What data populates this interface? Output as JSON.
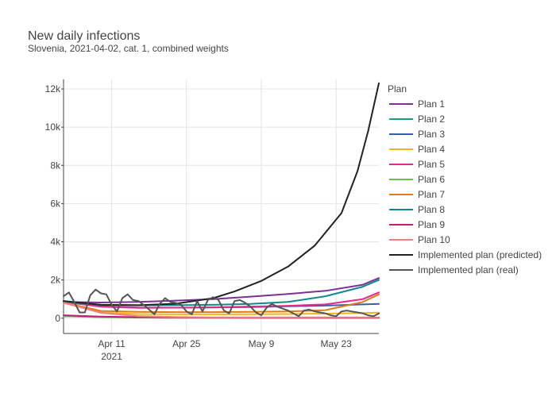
{
  "chart_data": {
    "type": "line",
    "title": "New daily infections",
    "subtitle": "Slovenia, 2021-04-02, cat. 1, combined weights",
    "xlabel": "",
    "ylabel": "",
    "x_start": "2021-04-02",
    "x_end": "2021-05-31",
    "x_ticks": [
      {
        "date": "2021-04-11",
        "label": "Apr 11",
        "sublabel": "2021"
      },
      {
        "date": "2021-04-25",
        "label": "Apr 25",
        "sublabel": ""
      },
      {
        "date": "2021-05-09",
        "label": "May 9",
        "sublabel": ""
      },
      {
        "date": "2021-05-23",
        "label": "May 23",
        "sublabel": ""
      }
    ],
    "ylim": [
      -800,
      12500
    ],
    "y_ticks": [
      {
        "value": 0,
        "label": "0"
      },
      {
        "value": 2000,
        "label": "2k"
      },
      {
        "value": 4000,
        "label": "4k"
      },
      {
        "value": 6000,
        "label": "6k"
      },
      {
        "value": 8000,
        "label": "8k"
      },
      {
        "value": 10000,
        "label": "10k"
      },
      {
        "value": 12000,
        "label": "12k"
      }
    ],
    "grid": true,
    "legend_title": "Plan",
    "legend_position": "right",
    "series": [
      {
        "name": "Plan 1",
        "color": "#7b3294",
        "points": [
          [
            "2021-04-02",
            850
          ],
          [
            "2021-04-09",
            820
          ],
          [
            "2021-04-16",
            850
          ],
          [
            "2021-04-23",
            920
          ],
          [
            "2021-04-30",
            1000
          ],
          [
            "2021-05-07",
            1130
          ],
          [
            "2021-05-14",
            1270
          ],
          [
            "2021-05-21",
            1430
          ],
          [
            "2021-05-28",
            1750
          ],
          [
            "2021-05-31",
            2100
          ]
        ]
      },
      {
        "name": "Plan 2",
        "color": "#1b9e77",
        "points": [
          [
            "2021-04-02",
            100
          ],
          [
            "2021-04-09",
            60
          ],
          [
            "2021-04-16",
            40
          ],
          [
            "2021-04-23",
            30
          ],
          [
            "2021-04-30",
            25
          ],
          [
            "2021-05-07",
            20
          ],
          [
            "2021-05-14",
            20
          ],
          [
            "2021-05-21",
            20
          ],
          [
            "2021-05-28",
            20
          ],
          [
            "2021-05-31",
            20
          ]
        ]
      },
      {
        "name": "Plan 3",
        "color": "#3a5ea8",
        "points": [
          [
            "2021-04-02",
            850
          ],
          [
            "2021-04-09",
            620
          ],
          [
            "2021-04-16",
            560
          ],
          [
            "2021-04-23",
            550
          ],
          [
            "2021-04-30",
            560
          ],
          [
            "2021-05-07",
            580
          ],
          [
            "2021-05-14",
            620
          ],
          [
            "2021-05-21",
            660
          ],
          [
            "2021-05-28",
            720
          ],
          [
            "2021-05-31",
            750
          ]
        ]
      },
      {
        "name": "Plan 4",
        "color": "#f1b61c",
        "points": [
          [
            "2021-04-02",
            800
          ],
          [
            "2021-04-09",
            300
          ],
          [
            "2021-04-16",
            220
          ],
          [
            "2021-04-23",
            200
          ],
          [
            "2021-04-30",
            200
          ],
          [
            "2021-05-07",
            210
          ],
          [
            "2021-05-14",
            220
          ],
          [
            "2021-05-21",
            240
          ],
          [
            "2021-05-28",
            270
          ],
          [
            "2021-05-31",
            290
          ]
        ]
      },
      {
        "name": "Plan 5",
        "color": "#e7298a",
        "points": [
          [
            "2021-04-02",
            850
          ],
          [
            "2021-04-09",
            600
          ],
          [
            "2021-04-16",
            540
          ],
          [
            "2021-04-23",
            550
          ],
          [
            "2021-04-30",
            570
          ],
          [
            "2021-05-07",
            610
          ],
          [
            "2021-05-14",
            650
          ],
          [
            "2021-05-21",
            720
          ],
          [
            "2021-05-28",
            1000
          ],
          [
            "2021-05-31",
            1350
          ]
        ]
      },
      {
        "name": "Plan 6",
        "color": "#66c24a",
        "points": [
          [
            "2021-04-02",
            100
          ],
          [
            "2021-04-09",
            50
          ],
          [
            "2021-04-16",
            30
          ],
          [
            "2021-04-23",
            25
          ],
          [
            "2021-04-30",
            20
          ],
          [
            "2021-05-07",
            20
          ],
          [
            "2021-05-14",
            20
          ],
          [
            "2021-05-21",
            20
          ],
          [
            "2021-05-28",
            20
          ],
          [
            "2021-05-31",
            20
          ]
        ]
      },
      {
        "name": "Plan 7",
        "color": "#e07b1a",
        "points": [
          [
            "2021-04-02",
            820
          ],
          [
            "2021-04-09",
            380
          ],
          [
            "2021-04-16",
            330
          ],
          [
            "2021-04-23",
            320
          ],
          [
            "2021-04-30",
            320
          ],
          [
            "2021-05-07",
            330
          ],
          [
            "2021-05-14",
            350
          ],
          [
            "2021-05-21",
            420
          ],
          [
            "2021-05-28",
            850
          ],
          [
            "2021-05-31",
            1250
          ]
        ]
      },
      {
        "name": "Plan 8",
        "color": "#0f8a8f",
        "points": [
          [
            "2021-04-02",
            850
          ],
          [
            "2021-04-09",
            700
          ],
          [
            "2021-04-16",
            680
          ],
          [
            "2021-04-23",
            680
          ],
          [
            "2021-04-30",
            700
          ],
          [
            "2021-05-07",
            750
          ],
          [
            "2021-05-14",
            850
          ],
          [
            "2021-05-21",
            1150
          ],
          [
            "2021-05-28",
            1650
          ],
          [
            "2021-05-31",
            2000
          ]
        ]
      },
      {
        "name": "Plan 9",
        "color": "#c51b7d",
        "points": [
          [
            "2021-04-02",
            150
          ],
          [
            "2021-04-09",
            80
          ],
          [
            "2021-04-16",
            50
          ],
          [
            "2021-04-23",
            40
          ],
          [
            "2021-04-30",
            30
          ],
          [
            "2021-05-07",
            25
          ],
          [
            "2021-05-14",
            25
          ],
          [
            "2021-05-21",
            25
          ],
          [
            "2021-05-28",
            25
          ],
          [
            "2021-05-31",
            25
          ]
        ]
      },
      {
        "name": "Plan 10",
        "color": "#f08080",
        "points": [
          [
            "2021-04-02",
            820
          ],
          [
            "2021-04-09",
            280
          ],
          [
            "2021-04-16",
            110
          ],
          [
            "2021-04-23",
            60
          ],
          [
            "2021-04-30",
            45
          ],
          [
            "2021-05-07",
            40
          ],
          [
            "2021-05-14",
            40
          ],
          [
            "2021-05-21",
            40
          ],
          [
            "2021-05-28",
            40
          ],
          [
            "2021-05-31",
            40
          ]
        ]
      },
      {
        "name": "Implemented plan (predicted)",
        "color": "#222222",
        "points": [
          [
            "2021-04-02",
            900
          ],
          [
            "2021-04-09",
            700
          ],
          [
            "2021-04-16",
            680
          ],
          [
            "2021-04-23",
            760
          ],
          [
            "2021-04-30",
            1050
          ],
          [
            "2021-05-04",
            1400
          ],
          [
            "2021-05-09",
            1950
          ],
          [
            "2021-05-14",
            2700
          ],
          [
            "2021-05-19",
            3800
          ],
          [
            "2021-05-24",
            5500
          ],
          [
            "2021-05-27",
            7700
          ],
          [
            "2021-05-29",
            9800
          ],
          [
            "2021-05-31",
            12300
          ]
        ]
      },
      {
        "name": "Implemented plan (real)",
        "color": "#555555",
        "points": [
          [
            "2021-04-02",
            1150
          ],
          [
            "2021-04-03",
            1350
          ],
          [
            "2021-04-04",
            850
          ],
          [
            "2021-04-05",
            300
          ],
          [
            "2021-04-06",
            300
          ],
          [
            "2021-04-07",
            1200
          ],
          [
            "2021-04-08",
            1500
          ],
          [
            "2021-04-09",
            1300
          ],
          [
            "2021-04-10",
            1250
          ],
          [
            "2021-04-11",
            700
          ],
          [
            "2021-04-12",
            350
          ],
          [
            "2021-04-13",
            1050
          ],
          [
            "2021-04-14",
            1250
          ],
          [
            "2021-04-15",
            950
          ],
          [
            "2021-04-16",
            900
          ],
          [
            "2021-04-17",
            700
          ],
          [
            "2021-04-18",
            450
          ],
          [
            "2021-04-19",
            200
          ],
          [
            "2021-04-20",
            750
          ],
          [
            "2021-04-21",
            1050
          ],
          [
            "2021-04-22",
            850
          ],
          [
            "2021-04-23",
            800
          ],
          [
            "2021-04-24",
            700
          ],
          [
            "2021-04-25",
            350
          ],
          [
            "2021-04-26",
            200
          ],
          [
            "2021-04-27",
            900
          ],
          [
            "2021-04-28",
            350
          ],
          [
            "2021-04-29",
            950
          ],
          [
            "2021-04-30",
            1100
          ],
          [
            "2021-05-01",
            950
          ],
          [
            "2021-05-02",
            400
          ],
          [
            "2021-05-03",
            250
          ],
          [
            "2021-05-04",
            900
          ],
          [
            "2021-05-05",
            950
          ],
          [
            "2021-05-06",
            800
          ],
          [
            "2021-05-07",
            600
          ],
          [
            "2021-05-08",
            300
          ],
          [
            "2021-05-09",
            150
          ],
          [
            "2021-05-10",
            550
          ],
          [
            "2021-05-11",
            750
          ],
          [
            "2021-05-12",
            600
          ],
          [
            "2021-05-13",
            500
          ],
          [
            "2021-05-14",
            400
          ],
          [
            "2021-05-15",
            250
          ],
          [
            "2021-05-16",
            100
          ],
          [
            "2021-05-17",
            400
          ],
          [
            "2021-05-18",
            450
          ],
          [
            "2021-05-19",
            350
          ],
          [
            "2021-05-20",
            300
          ],
          [
            "2021-05-21",
            250
          ],
          [
            "2021-05-22",
            150
          ],
          [
            "2021-05-23",
            100
          ],
          [
            "2021-05-24",
            350
          ],
          [
            "2021-05-25",
            400
          ],
          [
            "2021-05-26",
            350
          ],
          [
            "2021-05-27",
            300
          ],
          [
            "2021-05-28",
            250
          ],
          [
            "2021-05-29",
            150
          ],
          [
            "2021-05-30",
            100
          ],
          [
            "2021-05-31",
            250
          ]
        ]
      }
    ]
  }
}
